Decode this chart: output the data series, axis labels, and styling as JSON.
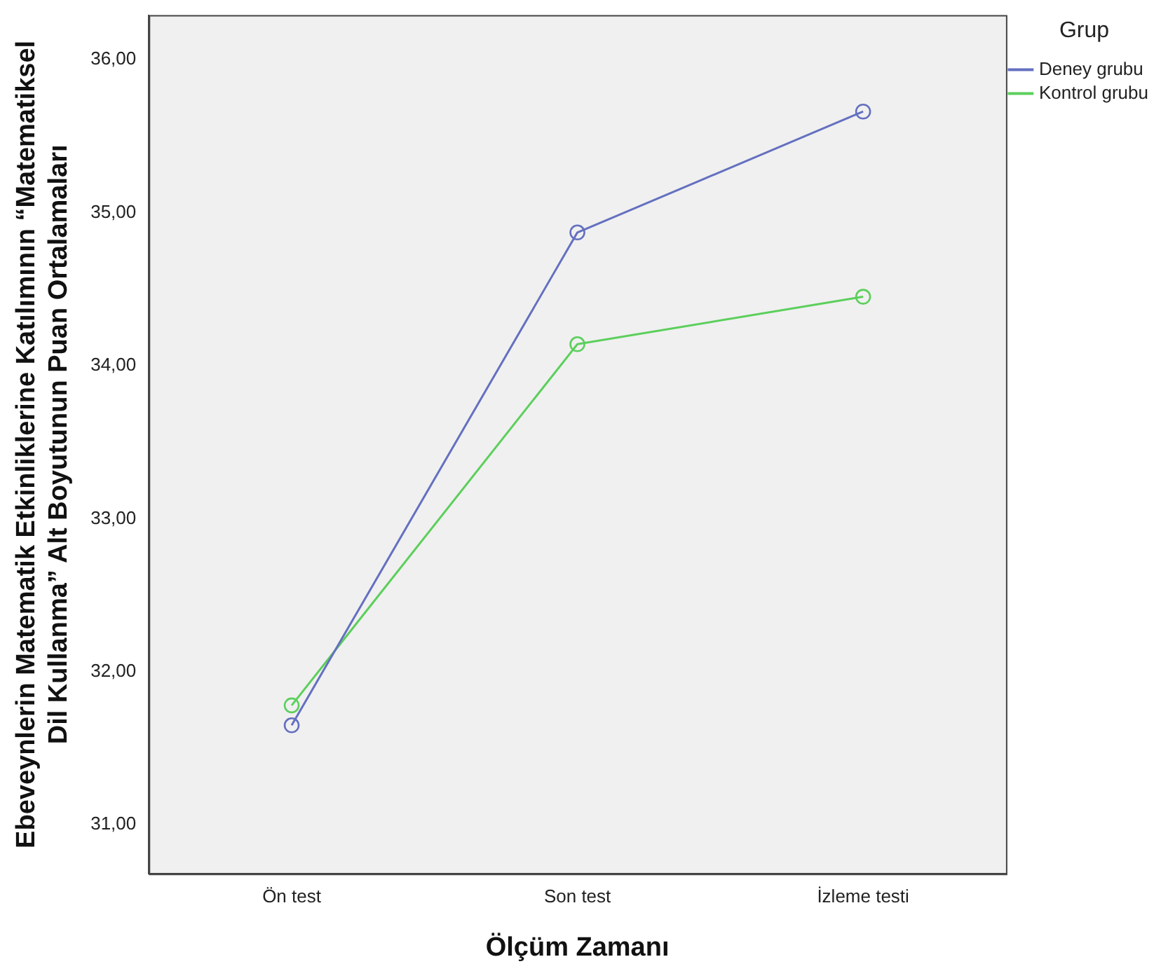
{
  "chart_data": {
    "type": "line",
    "xlabel": "Ölçüm Zamanı",
    "ylabel": "Ebeveynlerin Matematik Etkinliklerine Katılımının “Matematiksel Dil Kullanma” Alt Boyutunun Puan Ortalamaları",
    "legend_title": "Grup",
    "legend": "top right",
    "marker": "circle",
    "line_style": "solid",
    "grid": false,
    "categories": [
      "Ön test",
      "Son test",
      "İzleme testi"
    ],
    "series": [
      {
        "name": "Deney grubu",
        "color": "#6470c0",
        "values": [
          31.65,
          34.87,
          35.66
        ]
      },
      {
        "name": "Kontrol grubu",
        "color": "#5ccf5c",
        "values": [
          31.78,
          34.14,
          34.45
        ]
      }
    ],
    "ylim": [
      30.68,
      36.29
    ],
    "yticks": [
      {
        "value": 31,
        "label": "31,00"
      },
      {
        "value": 32,
        "label": "32,00"
      },
      {
        "value": 33,
        "label": "33,00"
      },
      {
        "value": 34,
        "label": "34,00"
      },
      {
        "value": 35,
        "label": "35,00"
      },
      {
        "value": 36,
        "label": "36,00"
      }
    ]
  }
}
